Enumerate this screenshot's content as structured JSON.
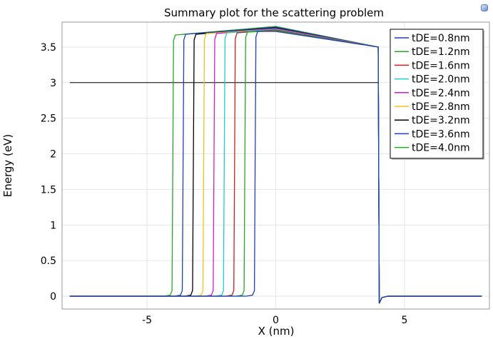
{
  "chart_data": {
    "type": "line",
    "title": "Summary plot for the scattering problem",
    "xlabel": "X (nm)",
    "ylabel": "Energy (eV)",
    "xlim": [
      -8.3,
      8.3
    ],
    "ylim": [
      -0.18,
      3.85
    ],
    "xticks": [
      -5,
      0,
      5
    ],
    "yticks": [
      0,
      0.5,
      1,
      1.5,
      2,
      2.5,
      3,
      3.5
    ],
    "grid": true,
    "legend_position": "top-right",
    "barrier": {
      "right_edge": 4.0,
      "right_height": 3.5,
      "peak_x": 0,
      "dip": -0.1,
      "x_min": -8,
      "x_max": 8
    },
    "incident_energy": {
      "y": 3.0,
      "x_start": -8,
      "x_end": 4.0
    },
    "series": [
      {
        "name": "tDE=0.8nm",
        "color": "#1f3fbf",
        "left_edge": -0.8,
        "left_height": 3.72,
        "peak": 3.72
      },
      {
        "name": "tDE=1.2nm",
        "color": "#22aa22",
        "left_edge": -1.2,
        "left_height": 3.71,
        "peak": 3.73
      },
      {
        "name": "tDE=1.6nm",
        "color": "#cc1f1f",
        "left_edge": -1.6,
        "left_height": 3.7,
        "peak": 3.74
      },
      {
        "name": "tDE=2.0nm",
        "color": "#1fcccc",
        "left_edge": -2.0,
        "left_height": 3.7,
        "peak": 3.75
      },
      {
        "name": "tDE=2.4nm",
        "color": "#cc1fcc",
        "left_edge": -2.4,
        "left_height": 3.69,
        "peak": 3.76
      },
      {
        "name": "tDE=2.8nm",
        "color": "#f0c020",
        "left_edge": -2.8,
        "left_height": 3.69,
        "peak": 3.76
      },
      {
        "name": "tDE=3.2nm",
        "color": "#000000",
        "left_edge": -3.2,
        "left_height": 3.68,
        "peak": 3.77
      },
      {
        "name": "tDE=3.6nm",
        "color": "#1f3fbf",
        "left_edge": -3.6,
        "left_height": 3.68,
        "peak": 3.78
      },
      {
        "name": "tDE=4.0nm",
        "color": "#22aa22",
        "left_edge": -4.0,
        "left_height": 3.67,
        "peak": 3.79
      }
    ]
  }
}
